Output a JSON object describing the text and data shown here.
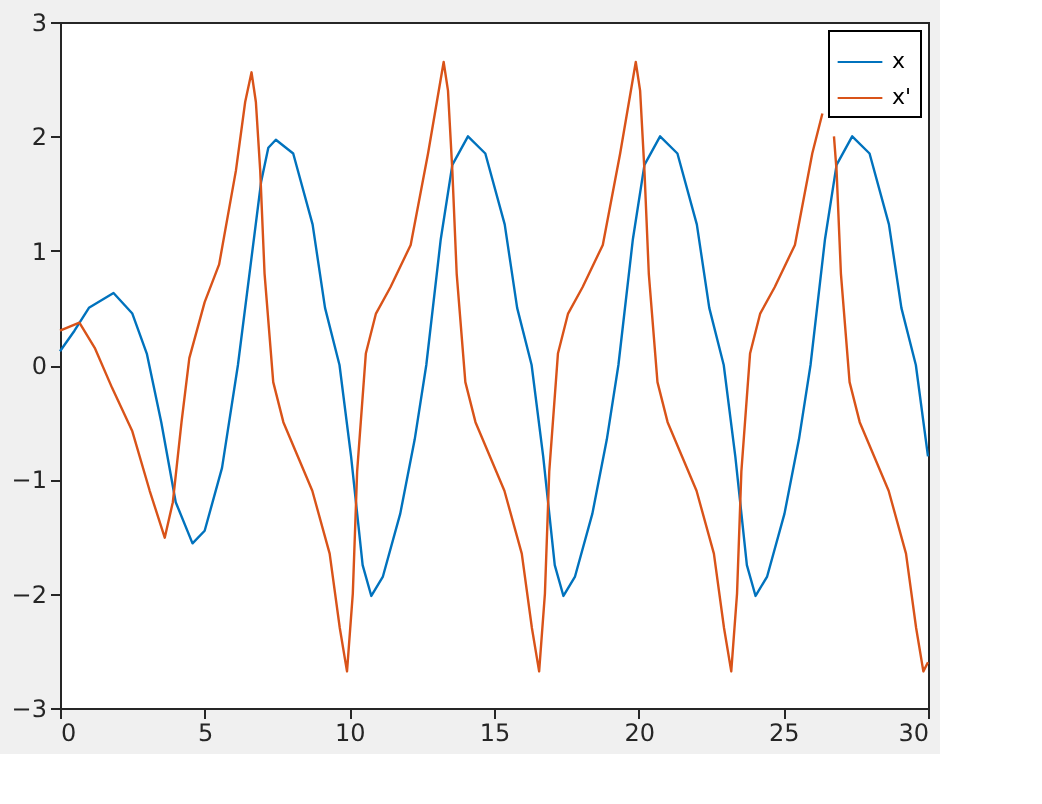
{
  "chart_data": {
    "type": "line",
    "legend": "top right",
    "grid": false,
    "marker": "none",
    "line_style": "solid",
    "xlim": [
      0,
      30
    ],
    "xticks": [
      0,
      5,
      10,
      15,
      20,
      25,
      30
    ],
    "ylim": [
      -3,
      3
    ],
    "yticks": [
      -3,
      -2,
      -1,
      0,
      1,
      2,
      3
    ],
    "series": [
      {
        "name": "x",
        "color": "#0072bd",
        "x": [
          0,
          0.5,
          1,
          1.85,
          2.5,
          3,
          3.5,
          4,
          4.58,
          5,
          5.6,
          6.15,
          6.6,
          6.95,
          7.2,
          7.46,
          8.06,
          8.73,
          9.16,
          9.66,
          10.06,
          10.46,
          10.76,
          11.16,
          11.76,
          12.26,
          12.66,
          13.16,
          13.56,
          14.1,
          14.7,
          15.37,
          15.8,
          16.3,
          16.7,
          17.1,
          17.4,
          17.8,
          18.4,
          18.9,
          19.3,
          19.8,
          20.2,
          20.74,
          21.34,
          22.01,
          22.44,
          22.94,
          23.34,
          23.74,
          24.04,
          24.44,
          25.04,
          25.54,
          25.94,
          26.44,
          26.84,
          27.38,
          27.98,
          28.65,
          29.08,
          29.58,
          30
        ],
        "values": [
          0.12,
          0.3,
          0.5,
          0.63,
          0.45,
          0.1,
          -0.5,
          -1.2,
          -1.56,
          -1.45,
          -0.9,
          0,
          0.9,
          1.6,
          1.9,
          1.97,
          1.85,
          1.23,
          0.5,
          0,
          -0.8,
          -1.75,
          -2.02,
          -1.85,
          -1.3,
          -0.65,
          0,
          1.1,
          1.75,
          2.0,
          1.85,
          1.23,
          0.5,
          0,
          -0.8,
          -1.75,
          -2.02,
          -1.85,
          -1.3,
          -0.65,
          0,
          1.1,
          1.75,
          2.0,
          1.85,
          1.23,
          0.5,
          0,
          -0.8,
          -1.75,
          -2.02,
          -1.85,
          -1.3,
          -0.65,
          0,
          1.1,
          1.75,
          2.0,
          1.85,
          1.23,
          0.5,
          0,
          -0.8
        ]
      },
      {
        "name": "x'",
        "color": "#d95319",
        "x": [
          0,
          0.67,
          1.2,
          1.8,
          2.5,
          3.1,
          3.62,
          3.9,
          4.2,
          4.47,
          5,
          5.5,
          6.08,
          6.4,
          6.62,
          6.77,
          6.92,
          7.07,
          7.37,
          7.72,
          8.22,
          8.72,
          9.32,
          9.67,
          9.92,
          10.12,
          10.27,
          10.57,
          10.92,
          11.42,
          12.12,
          12.72,
          13.26,
          13.41,
          13.56,
          13.71,
          14.01,
          14.36,
          14.86,
          15.36,
          15.96,
          16.31,
          16.56,
          16.76,
          16.91,
          17.21,
          17.56,
          18.06,
          18.76,
          19.36,
          19.9,
          20.05,
          20.2,
          20.35,
          20.65,
          21.0,
          21.5,
          22.0,
          22.6,
          22.95,
          23.2,
          23.4,
          23.55,
          23.85,
          24.2,
          24.7,
          25.4,
          26.0,
          26.35,
          26.54,
          26.75,
          26.84,
          26.99,
          27.29,
          27.64,
          28.14,
          28.64,
          29.24,
          29.59,
          29.84,
          30
        ],
        "values": [
          0.3,
          0.37,
          0.15,
          -0.2,
          -0.58,
          -1.1,
          -1.51,
          -1.2,
          -0.5,
          0.06,
          0.55,
          0.88,
          1.7,
          2.3,
          2.56,
          2.3,
          1.7,
          0.8,
          -0.15,
          -0.5,
          -0.8,
          -1.1,
          -1.65,
          -2.3,
          -2.68,
          -2.0,
          -0.93,
          0.1,
          0.45,
          0.68,
          1.05,
          1.85,
          2.65,
          2.4,
          1.7,
          0.8,
          -0.15,
          -0.5,
          -0.8,
          -1.1,
          -1.65,
          -2.3,
          -2.68,
          -2.0,
          -0.93,
          0.1,
          0.45,
          0.68,
          1.05,
          1.85,
          2.65,
          2.4,
          1.7,
          0.8,
          -0.15,
          -0.5,
          -0.8,
          -1.1,
          -1.65,
          -2.3,
          -2.68,
          -2.0,
          -0.93,
          0.1,
          0.45,
          0.68,
          1.05,
          1.85,
          2.2,
          null,
          2.0,
          1.7,
          0.8,
          -0.15,
          -0.5,
          -0.8,
          -1.1,
          -1.65,
          -2.3,
          -2.68,
          -2.6
        ]
      }
    ]
  }
}
